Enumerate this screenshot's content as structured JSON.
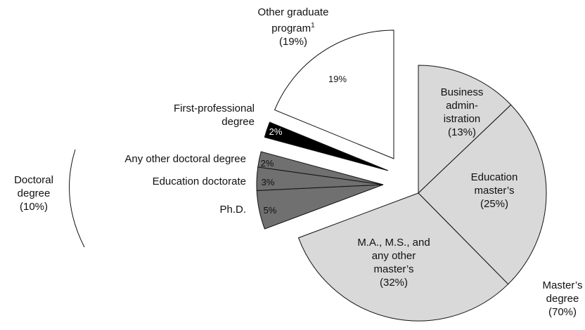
{
  "chart_data": {
    "type": "pie",
    "categories": [
      "Business\nadmin-\nistration",
      "Education\nmaster’s",
      "M.A., M.S., and\nany other\nmaster’s",
      "Ph.D.",
      "Education doctorate",
      "Any other doctoral degree",
      "First-professional\ndegree",
      "Other graduate\nprogram"
    ],
    "values": [
      13,
      25,
      32,
      5,
      3,
      2,
      2,
      19
    ],
    "value_labels": [
      "(13%)",
      "(25%)",
      "(32%)",
      "5%",
      "3%",
      "2%",
      "2%",
      "19%"
    ],
    "colors": [
      "#d9d9d9",
      "#d9d9d9",
      "#d9d9d9",
      "#707070",
      "#707070",
      "#707070",
      "#000000",
      "#ffffff"
    ],
    "footnote_mark": "1",
    "outer_value_label": "(19%)",
    "groups": [
      {
        "name": "Master’s\ndegree",
        "value_label": "(70%)"
      },
      {
        "name": "Doctoral\ndegree",
        "value_label": "(10%)"
      }
    ]
  }
}
